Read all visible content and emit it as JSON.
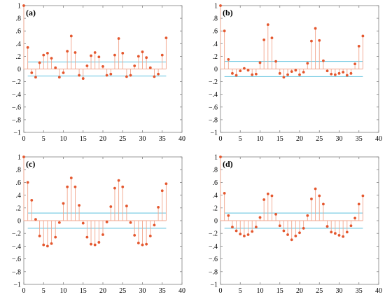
{
  "colors": {
    "stem": "#e4572e",
    "baseline": "#f2a58c",
    "confidence": "#5bc0de",
    "axis": "#808080",
    "text": "#000000"
  },
  "chart_data": [
    {
      "type": "stem",
      "label": "(a)",
      "xlim": [
        0,
        40
      ],
      "ylim": [
        -1,
        1
      ],
      "xticks": [
        0,
        5,
        10,
        15,
        20,
        25,
        30,
        35,
        40
      ],
      "yticks": [
        -1,
        -0.8,
        -0.6,
        -0.4,
        -0.2,
        0,
        0.2,
        0.4,
        0.6,
        0.8,
        1
      ],
      "confidence_bounds": [
        0.11,
        -0.11
      ],
      "x": [
        0,
        1,
        2,
        3,
        4,
        5,
        6,
        7,
        8,
        9,
        10,
        11,
        12,
        13,
        14,
        15,
        16,
        17,
        18,
        19,
        20,
        21,
        22,
        23,
        24,
        25,
        26,
        27,
        28,
        29,
        30,
        31,
        32,
        33,
        34,
        35,
        36
      ],
      "values": [
        1.0,
        0.34,
        -0.06,
        -0.13,
        0.1,
        0.22,
        0.25,
        0.17,
        0.02,
        -0.13,
        -0.06,
        0.28,
        0.52,
        0.26,
        -0.1,
        -0.15,
        0.05,
        0.21,
        0.26,
        0.19,
        0.04,
        -0.1,
        -0.08,
        0.22,
        0.48,
        0.25,
        -0.12,
        -0.1,
        0.05,
        0.2,
        0.27,
        0.18,
        0.02,
        -0.12,
        -0.08,
        0.22,
        0.49
      ]
    },
    {
      "type": "stem",
      "label": "(b)",
      "xlim": [
        0,
        40
      ],
      "ylim": [
        -1,
        1
      ],
      "xticks": [
        0,
        5,
        10,
        15,
        20,
        25,
        30,
        35,
        40
      ],
      "yticks": [
        -1,
        -0.8,
        -0.6,
        -0.4,
        -0.2,
        0,
        0.2,
        0.4,
        0.6,
        0.8,
        1
      ],
      "confidence_bounds": [
        0.12,
        -0.12
      ],
      "x": [
        0,
        1,
        2,
        3,
        4,
        5,
        6,
        7,
        8,
        9,
        10,
        11,
        12,
        13,
        14,
        15,
        16,
        17,
        18,
        19,
        20,
        21,
        22,
        23,
        24,
        25,
        26,
        27,
        28,
        29,
        30,
        31,
        32,
        33,
        34,
        35,
        36
      ],
      "values": [
        1.0,
        0.6,
        0.15,
        -0.07,
        -0.1,
        -0.03,
        0.01,
        -0.02,
        -0.09,
        -0.08,
        0.1,
        0.46,
        0.7,
        0.49,
        0.12,
        -0.07,
        -0.13,
        -0.09,
        -0.04,
        -0.02,
        -0.09,
        -0.05,
        0.09,
        0.44,
        0.64,
        0.45,
        0.13,
        -0.03,
        -0.08,
        -0.09,
        -0.07,
        -0.05,
        -0.1,
        -0.07,
        0.08,
        0.36,
        0.52
      ]
    },
    {
      "type": "stem",
      "label": "(c)",
      "xlim": [
        0,
        40
      ],
      "ylim": [
        -1,
        1
      ],
      "xticks": [
        0,
        5,
        10,
        15,
        20,
        25,
        30,
        35,
        40
      ],
      "yticks": [
        -1,
        -0.8,
        -0.6,
        -0.4,
        -0.2,
        0,
        0.2,
        0.4,
        0.6,
        0.8,
        1
      ],
      "confidence_bounds": [
        0.12,
        -0.12
      ],
      "x": [
        0,
        1,
        2,
        3,
        4,
        5,
        6,
        7,
        8,
        9,
        10,
        11,
        12,
        13,
        14,
        15,
        16,
        17,
        18,
        19,
        20,
        21,
        22,
        23,
        24,
        25,
        26,
        27,
        28,
        29,
        30,
        31,
        32,
        33,
        34,
        35,
        36
      ],
      "values": [
        1.0,
        0.6,
        0.32,
        0.02,
        -0.24,
        -0.38,
        -0.4,
        -0.36,
        -0.26,
        -0.03,
        0.27,
        0.53,
        0.67,
        0.53,
        0.24,
        -0.04,
        -0.26,
        -0.37,
        -0.38,
        -0.34,
        -0.22,
        -0.02,
        0.22,
        0.51,
        0.63,
        0.53,
        0.23,
        -0.03,
        -0.23,
        -0.35,
        -0.38,
        -0.37,
        -0.24,
        -0.07,
        0.21,
        0.47,
        0.58
      ]
    },
    {
      "type": "stem",
      "label": "(d)",
      "xlim": [
        0,
        40
      ],
      "ylim": [
        -1,
        1
      ],
      "xticks": [
        0,
        5,
        10,
        15,
        20,
        25,
        30,
        35,
        40
      ],
      "yticks": [
        -1,
        -0.8,
        -0.6,
        -0.4,
        -0.2,
        0,
        0.2,
        0.4,
        0.6,
        0.8,
        1
      ],
      "confidence_bounds": [
        0.12,
        -0.12
      ],
      "x": [
        0,
        1,
        2,
        3,
        4,
        5,
        6,
        7,
        8,
        9,
        10,
        11,
        12,
        13,
        14,
        15,
        16,
        17,
        18,
        19,
        20,
        21,
        22,
        23,
        24,
        25,
        26,
        27,
        28,
        29,
        30,
        31,
        32,
        33,
        34,
        35,
        36
      ],
      "values": [
        1.0,
        0.43,
        0.08,
        -0.1,
        -0.16,
        -0.21,
        -0.24,
        -0.22,
        -0.17,
        -0.1,
        0.05,
        0.33,
        0.42,
        0.39,
        0.1,
        -0.08,
        -0.16,
        -0.22,
        -0.3,
        -0.24,
        -0.19,
        -0.12,
        0.08,
        0.34,
        0.5,
        0.39,
        0.26,
        -0.09,
        -0.18,
        -0.2,
        -0.23,
        -0.25,
        -0.18,
        -0.08,
        0.04,
        0.26,
        0.39
      ]
    }
  ]
}
